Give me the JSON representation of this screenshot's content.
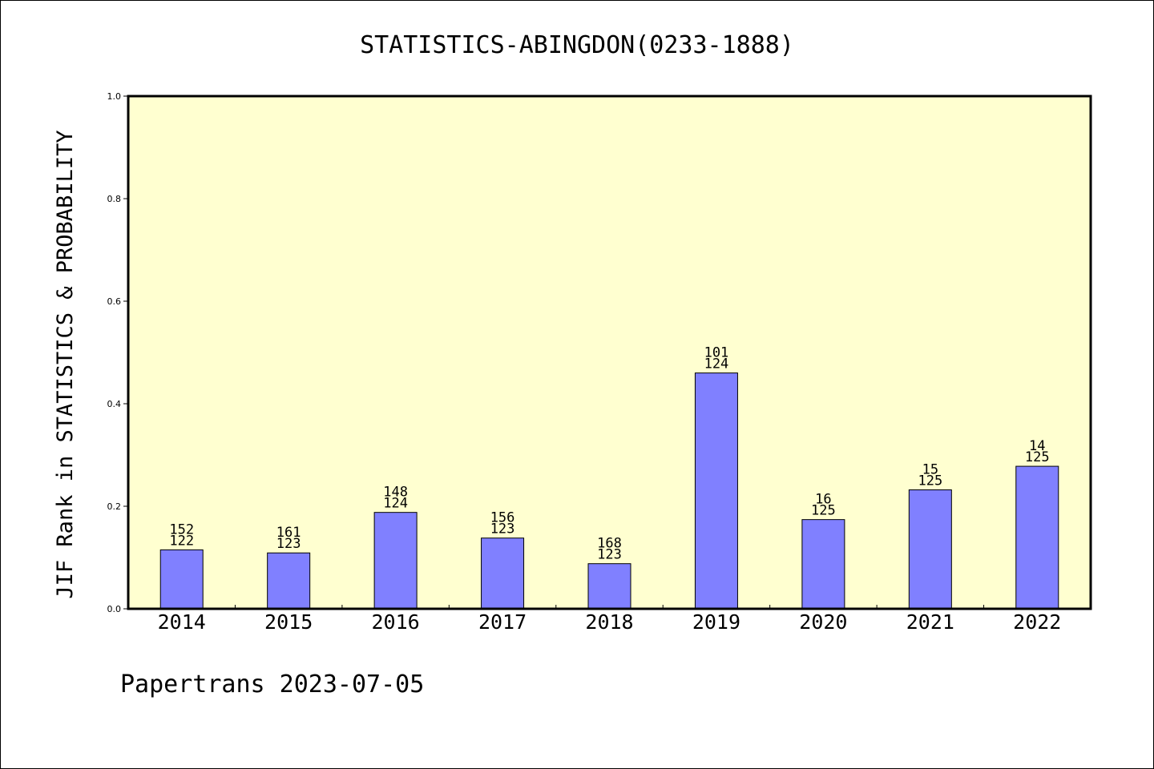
{
  "chart_data": {
    "type": "bar",
    "title": "STATISTICS-ABINGDON(0233-1888)",
    "ylabel": "JIF Rank in STATISTICS & PROBABILITY",
    "xlabel": "",
    "ylim": [
      0,
      1.0
    ],
    "yticks": [
      "0.0",
      "0.2",
      "0.4",
      "0.6",
      "0.8",
      "1.0"
    ],
    "grid": false,
    "categories": [
      "2014",
      "2015",
      "2016",
      "2017",
      "2018",
      "2019",
      "2020",
      "2021",
      "2022"
    ],
    "values": [
      0.115,
      0.109,
      0.188,
      0.138,
      0.088,
      0.46,
      0.174,
      0.232,
      0.278
    ],
    "rank_labels": [
      "152",
      "161",
      "148",
      "156",
      "168",
      "101",
      "16",
      "15",
      "14"
    ],
    "total_labels": [
      "122",
      "123",
      "124",
      "123",
      "123",
      "124",
      "125",
      "125",
      "125"
    ],
    "colors": {
      "bar": "#8080ff",
      "plot_background": "#ffffd0",
      "axis": "#000000"
    }
  },
  "footer": {
    "text": "Papertrans 2023-07-05"
  }
}
